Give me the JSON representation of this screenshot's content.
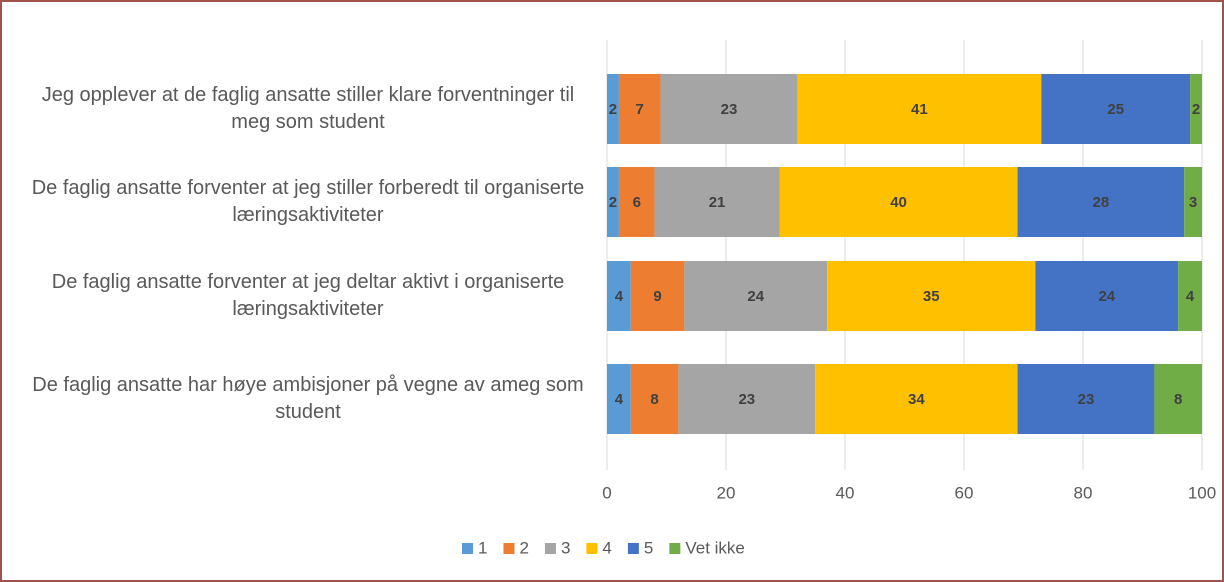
{
  "chart_data": {
    "type": "stacked_barh",
    "categories": [
      "Jeg opplever at de faglig ansatte stiller klare forventninger til meg som student",
      "De faglig ansatte forventer at jeg stiller forberedt til organiserte læringsaktiviteter",
      "De faglig ansatte forventer at jeg deltar aktivt i organiserte læringsaktiviteter",
      "De faglig ansatte har høye ambisjoner på vegne av ameg som student"
    ],
    "series": [
      {
        "name": "1",
        "color": "#5b9bd5",
        "values": [
          2,
          2,
          4,
          4
        ]
      },
      {
        "name": "2",
        "color": "#ed7d31",
        "values": [
          7,
          6,
          9,
          8
        ]
      },
      {
        "name": "3",
        "color": "#a5a5a5",
        "values": [
          23,
          21,
          24,
          23
        ]
      },
      {
        "name": "4",
        "color": "#ffc000",
        "values": [
          41,
          40,
          35,
          34
        ]
      },
      {
        "name": "5",
        "color": "#4472c4",
        "values": [
          25,
          28,
          24,
          23
        ]
      },
      {
        "name": "Vet ikke",
        "color": "#70ad47",
        "values": [
          2,
          3,
          4,
          8
        ]
      }
    ],
    "xlim": [
      0,
      100
    ],
    "xticks": [
      0,
      20,
      40,
      60,
      80,
      100
    ],
    "grid": true,
    "legend": "bottom"
  }
}
